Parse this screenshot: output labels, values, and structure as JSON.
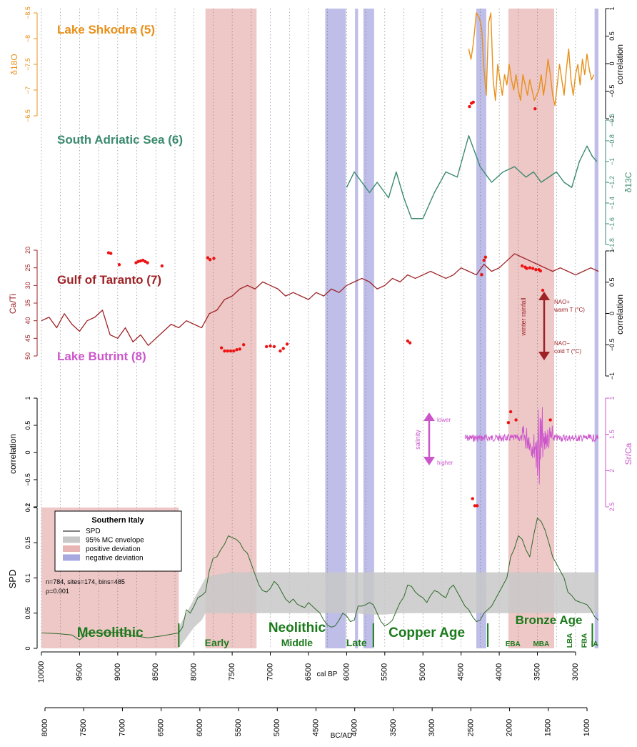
{
  "colors": {
    "shkodra": "#e8901a",
    "adriatic": "#3a8a6e",
    "taranto": "#9e2226",
    "butrint": "#cc55cc",
    "spd": "#2f6b2a",
    "period": "#1b7a1b",
    "positive": "#e8b4b4",
    "negative": "#a8a8e0",
    "envelope": "#c8c8c8",
    "marker": "#ee1111"
  },
  "chart_data": [
    {
      "type": "line",
      "title": "Lake Shkodra (5)",
      "xlabel": "cal BP",
      "ylabel": "δ18O",
      "ylabel_right": "correlation",
      "xlim": [
        10000,
        2700
      ],
      "ylim": [
        -6.5,
        -8.5
      ],
      "y_ticks": [
        -6.5,
        -7,
        -7.5,
        -8,
        -8.5
      ],
      "right_ticks": [
        -1,
        -0.5,
        0,
        0.5,
        1
      ],
      "x": [
        4400,
        4370,
        4340,
        4300,
        4260,
        4230,
        4200,
        4170,
        4140,
        4110,
        4080,
        4050,
        4020,
        3990,
        3960,
        3930,
        3900,
        3870,
        3840,
        3810,
        3780,
        3750,
        3720,
        3690,
        3660,
        3630,
        3600,
        3570,
        3540,
        3510,
        3480,
        3450,
        3420,
        3390,
        3360,
        3330,
        3300,
        3270,
        3240,
        3210,
        3180,
        3150,
        3120,
        3090,
        3060,
        3030,
        3000,
        2970,
        2940,
        2910,
        2880,
        2850,
        2820,
        2790,
        2760
      ],
      "y": [
        -7.8,
        -7.6,
        -7.9,
        -8.5,
        -8.4,
        -8.2,
        -7.4,
        -6.9,
        -8.3,
        -8.5,
        -7.2,
        -6.8,
        -7.5,
        -7.2,
        -6.9,
        -7.3,
        -7.1,
        -7.5,
        -7.2,
        -7.0,
        -7.3,
        -7.0,
        -6.8,
        -7.3,
        -7.1,
        -6.9,
        -7.2,
        -7.0,
        -6.8,
        -6.9,
        -7.0,
        -7.3,
        -6.9,
        -7.2,
        -7.6,
        -7.3,
        -6.9,
        -6.7,
        -7.1,
        -7.5,
        -7.2,
        -6.9,
        -7.4,
        -7.8,
        -7.2,
        -6.9,
        -7.3,
        -7.5,
        -7.1,
        -7.6,
        -7.3,
        -7.7,
        -7.4,
        -7.2,
        -7.3
      ],
      "correlation_points": {
        "x": [
          4390,
          4365,
          4340,
          3530
        ],
        "y": [
          -0.78,
          -0.72,
          -0.7,
          -0.82
        ]
      }
    },
    {
      "type": "line",
      "title": "South Adriatic Sea (6)",
      "ylabel": "δ13C",
      "ylim": [
        -1.8,
        -0.6
      ],
      "y_ticks": [
        -0.6,
        -0.8,
        -1,
        -1.2,
        -1.4,
        -1.6,
        -1.8
      ],
      "x": [
        6000,
        5900,
        5700,
        5600,
        5450,
        5350,
        5250,
        5150,
        5000,
        4850,
        4700,
        4550,
        4400,
        4250,
        4100,
        3950,
        3800,
        3650,
        3550,
        3450,
        3350,
        3250,
        3150,
        3050,
        2950,
        2850,
        2780,
        2720
      ],
      "y": [
        -1.25,
        -1.1,
        -1.3,
        -1.2,
        -1.35,
        -1.1,
        -1.35,
        -1.55,
        -1.55,
        -1.3,
        -1.1,
        -1.15,
        -0.75,
        -1.05,
        -1.2,
        -1.1,
        -1.05,
        -1.15,
        -1.1,
        -1.2,
        -1.15,
        -1.1,
        -1.2,
        -1.25,
        -1.0,
        -0.85,
        -0.95,
        -1.0
      ]
    },
    {
      "type": "line",
      "title": "Gulf of Taranto (7)",
      "ylabel": "Ca/Ti",
      "ylabel_right": "correlation",
      "ylim": [
        50,
        20
      ],
      "y_ticks": [
        20,
        25,
        30,
        35,
        40,
        45,
        50
      ],
      "right_ticks": [
        -1,
        -0.5,
        0,
        0.5,
        1
      ],
      "annotations": [
        "winter rainfall",
        "NAO+",
        "warm T (°C)",
        "NAO−",
        "cold T (°C)"
      ],
      "x": [
        10000,
        9900,
        9800,
        9700,
        9600,
        9500,
        9400,
        9300,
        9200,
        9100,
        9000,
        8900,
        8800,
        8700,
        8600,
        8500,
        8400,
        8300,
        8200,
        8100,
        8000,
        7900,
        7800,
        7700,
        7600,
        7500,
        7400,
        7300,
        7200,
        7100,
        7000,
        6900,
        6800,
        6700,
        6600,
        6500,
        6400,
        6300,
        6200,
        6100,
        6000,
        5900,
        5800,
        5700,
        5600,
        5500,
        5400,
        5300,
        5200,
        5100,
        5000,
        4900,
        4800,
        4700,
        4600,
        4500,
        4400,
        4300,
        4200,
        4100,
        4000,
        3900,
        3800,
        3700,
        3600,
        3500,
        3400,
        3300,
        3200,
        3100,
        3000,
        2900,
        2800,
        2700
      ],
      "y": [
        40,
        39,
        42,
        38,
        41,
        43,
        40,
        39,
        37,
        44,
        45,
        42,
        46,
        44,
        47,
        45,
        43,
        41,
        42,
        40,
        41,
        42,
        38,
        37,
        34,
        33,
        31,
        30,
        31,
        29,
        30,
        31,
        33,
        32,
        33,
        34,
        32,
        33,
        31,
        32,
        30,
        29,
        28,
        29,
        31,
        30,
        28,
        29,
        27,
        28,
        27,
        26,
        27,
        28,
        27,
        25,
        26,
        27,
        24,
        26,
        25,
        23,
        21,
        22,
        23,
        24,
        25,
        26,
        25,
        26,
        27,
        26,
        25,
        26
      ],
      "correlation_points": {
        "x": [
          9120,
          9090,
          8980,
          8760,
          8730,
          8700,
          8670,
          8640,
          8610,
          8420,
          7820,
          7790,
          7740,
          7640,
          7600,
          7560,
          7520,
          7480,
          7440,
          7400,
          7350,
          7050,
          7000,
          6950,
          6870,
          6830,
          6780,
          5200,
          5170,
          4230,
          4200,
          4180,
          3700,
          3660,
          3640,
          3600,
          3560,
          3520,
          3480,
          3460,
          3430
        ],
        "y": [
          0.97,
          0.96,
          0.78,
          0.81,
          0.83,
          0.84,
          0.85,
          0.83,
          0.81,
          0.76,
          0.89,
          0.86,
          0.88,
          -0.55,
          -0.6,
          -0.6,
          -0.6,
          -0.6,
          -0.58,
          -0.57,
          -0.5,
          -0.53,
          -0.52,
          -0.53,
          -0.6,
          -0.56,
          -0.49,
          -0.44,
          -0.47,
          0.62,
          0.85,
          0.9,
          0.76,
          0.74,
          0.72,
          0.73,
          0.72,
          0.7,
          0.7,
          0.68,
          0.37
        ]
      }
    },
    {
      "type": "line",
      "title": "Lake Butrint (8)",
      "ylabel": "correlation",
      "ylabel_right": "Sr/Ca",
      "ylim": [
        -1,
        1
      ],
      "y_ticks": [
        -1,
        -0.5,
        0,
        0.5,
        1
      ],
      "right_ticks": [
        1,
        1.5,
        2,
        2.5
      ],
      "annotations": [
        "salinity",
        "lower",
        "higher"
      ],
      "correlation_points": {
        "x": [
          3880,
          3850,
          3780,
          4350,
          4320,
          4290,
          3330
        ],
        "y": [
          0.55,
          0.75,
          0.6,
          -0.85,
          -0.98,
          -0.98,
          0.6
        ]
      }
    },
    {
      "type": "area",
      "title": "Southern Italy",
      "xlabel": "cal BP",
      "x2label": "BC/AD",
      "ylabel": "SPD",
      "ylim": [
        0,
        0.2
      ],
      "y_ticks": [
        0,
        0.05,
        0.1,
        0.15,
        0.2
      ],
      "x_ticks": [
        10000,
        9500,
        9000,
        8500,
        8000,
        7500,
        7000,
        6500,
        6000,
        5500,
        5000,
        4500,
        4000,
        3500,
        3000
      ],
      "x2_ticks": [
        8000,
        7500,
        7000,
        6500,
        6000,
        5500,
        5000,
        4500,
        4000,
        3500,
        3000,
        2500,
        2000,
        1500,
        1000
      ],
      "stats": [
        "n=784, sites=174, bins=485",
        "ρ=0.001"
      ],
      "legend": [
        "SPD",
        "95% MC envelope",
        "positive deviation",
        "negative deviation"
      ],
      "positive_deviation": [
        [
          10000,
          8200
        ],
        [
          7850,
          7180
        ],
        [
          3880,
          3280
        ]
      ],
      "negative_deviation": [
        [
          6280,
          6010
        ],
        [
          5890,
          5850
        ],
        [
          5780,
          5640
        ],
        [
          4300,
          4170
        ],
        [
          2750,
          2700
        ]
      ],
      "envelope": {
        "x": [
          8200,
          8100,
          8000,
          7900,
          7850,
          7700,
          7500,
          7300,
          7100,
          6900,
          6700,
          6500,
          6300,
          6100,
          5900,
          5700,
          5500,
          5300,
          5100,
          4900,
          4700,
          4500,
          4300,
          4100,
          3900,
          3700,
          3500,
          3300,
          3100,
          2900,
          2700
        ],
        "lower": [
          0.0,
          0.015,
          0.03,
          0.04,
          0.05,
          0.05,
          0.05,
          0.05,
          0.05,
          0.05,
          0.05,
          0.05,
          0.05,
          0.05,
          0.05,
          0.048,
          0.048,
          0.05,
          0.05,
          0.05,
          0.05,
          0.05,
          0.05,
          0.05,
          0.05,
          0.05,
          0.05,
          0.05,
          0.05,
          0.05,
          0.05
        ],
        "upper": [
          0.03,
          0.05,
          0.07,
          0.09,
          0.1,
          0.105,
          0.108,
          0.108,
          0.108,
          0.108,
          0.108,
          0.108,
          0.108,
          0.108,
          0.108,
          0.108,
          0.108,
          0.108,
          0.108,
          0.108,
          0.108,
          0.108,
          0.108,
          0.108,
          0.108,
          0.108,
          0.108,
          0.108,
          0.108,
          0.108,
          0.108
        ]
      },
      "spd": {
        "x": [
          10000,
          9800,
          9600,
          9500,
          9400,
          9200,
          9000,
          8800,
          8600,
          8400,
          8300,
          8200,
          8150,
          8100,
          8050,
          8000,
          7950,
          7900,
          7850,
          7800,
          7750,
          7700,
          7650,
          7600,
          7550,
          7500,
          7450,
          7400,
          7350,
          7300,
          7250,
          7200,
          7150,
          7100,
          7050,
          7000,
          6950,
          6900,
          6850,
          6800,
          6750,
          6700,
          6650,
          6600,
          6550,
          6500,
          6450,
          6400,
          6350,
          6300,
          6250,
          6200,
          6150,
          6100,
          6050,
          6000,
          5950,
          5900,
          5850,
          5800,
          5750,
          5700,
          5650,
          5600,
          5550,
          5500,
          5450,
          5400,
          5350,
          5300,
          5250,
          5200,
          5150,
          5100,
          5050,
          5000,
          4950,
          4900,
          4850,
          4800,
          4750,
          4700,
          4650,
          4600,
          4550,
          4500,
          4450,
          4400,
          4350,
          4300,
          4250,
          4200,
          4150,
          4100,
          4050,
          4000,
          3950,
          3900,
          3850,
          3800,
          3750,
          3700,
          3650,
          3600,
          3550,
          3500,
          3450,
          3400,
          3350,
          3300,
          3250,
          3200,
          3150,
          3100,
          3050,
          3000,
          2950,
          2900,
          2850,
          2800,
          2750,
          2700
        ],
        "y": [
          0.022,
          0.021,
          0.019,
          0.012,
          0.021,
          0.022,
          0.023,
          0.018,
          0.015,
          0.018,
          0.02,
          0.022,
          0.03,
          0.055,
          0.05,
          0.06,
          0.072,
          0.075,
          0.08,
          0.11,
          0.128,
          0.13,
          0.14,
          0.148,
          0.16,
          0.157,
          0.155,
          0.15,
          0.14,
          0.135,
          0.12,
          0.105,
          0.09,
          0.082,
          0.08,
          0.085,
          0.095,
          0.09,
          0.08,
          0.07,
          0.065,
          0.07,
          0.063,
          0.06,
          0.058,
          0.065,
          0.06,
          0.055,
          0.05,
          0.04,
          0.033,
          0.03,
          0.032,
          0.04,
          0.05,
          0.046,
          0.038,
          0.04,
          0.06,
          0.06,
          0.062,
          0.065,
          0.062,
          0.05,
          0.038,
          0.032,
          0.035,
          0.04,
          0.053,
          0.065,
          0.073,
          0.09,
          0.088,
          0.08,
          0.075,
          0.072,
          0.065,
          0.075,
          0.082,
          0.08,
          0.075,
          0.072,
          0.085,
          0.09,
          0.08,
          0.07,
          0.06,
          0.055,
          0.045,
          0.038,
          0.04,
          0.05,
          0.055,
          0.06,
          0.07,
          0.08,
          0.09,
          0.1,
          0.13,
          0.142,
          0.16,
          0.155,
          0.14,
          0.13,
          0.16,
          0.185,
          0.18,
          0.168,
          0.15,
          0.13,
          0.12,
          0.11,
          0.1,
          0.08,
          0.075,
          0.068,
          0.066,
          0.064,
          0.062,
          0.055,
          0.045,
          0.04
        ]
      }
    }
  ],
  "periods": [
    {
      "label": "Mesolithic",
      "size": "large",
      "x": 9100
    },
    {
      "label": "Early",
      "size": "small",
      "x": 7700
    },
    {
      "label": "Neolithic",
      "size": "large",
      "x": 6650
    },
    {
      "label": "Middle",
      "size": "small",
      "x": 6650
    },
    {
      "label": "Late",
      "size": "small",
      "x": 5870
    },
    {
      "label": "Copper Age",
      "size": "large",
      "x": 4950
    },
    {
      "label": "Bronze Age",
      "size": "large",
      "x": 3350
    },
    {
      "label": "EBA",
      "size": "tiny",
      "x": 3820
    },
    {
      "label": "MBA",
      "size": "tiny",
      "x": 3450
    },
    {
      "label": "LBA",
      "size": "tiny",
      "x": 3120
    },
    {
      "label": "FBA",
      "size": "tiny",
      "x": 2930
    },
    {
      "label": "IA",
      "size": "tiny",
      "x": 2750
    }
  ],
  "period_boundaries": [
    8200,
    5650,
    4150,
    2780
  ]
}
